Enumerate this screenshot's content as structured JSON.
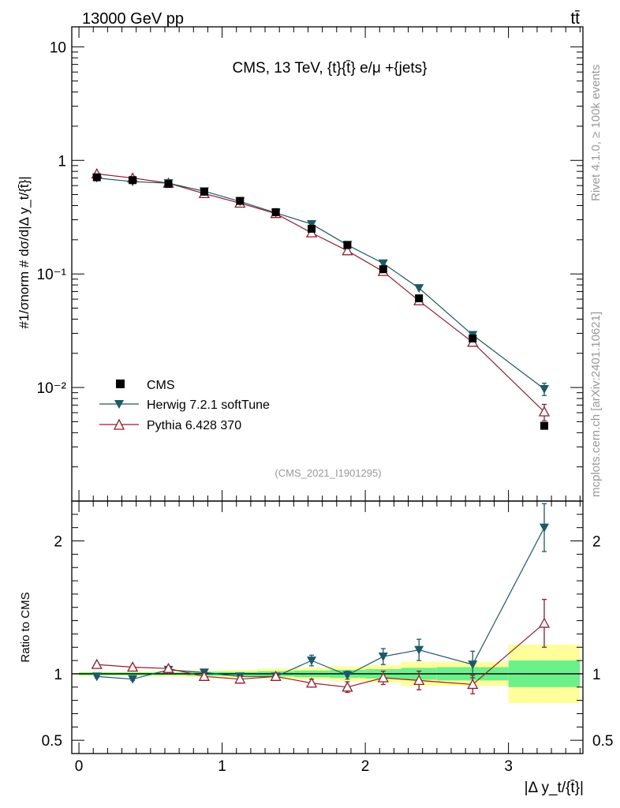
{
  "header": {
    "energy_label": "13000 GeV pp",
    "process_label": "tt̄"
  },
  "side_labels": {
    "rivet": "Rivet 4.1.0, ≥ 100k events",
    "mcplots": "mcplots.cern.ch [arXiv:2401.10621]"
  },
  "chart_data": [
    {
      "type": "line",
      "panel": "main",
      "title": "CMS, 13 TeV, {t}{t̄} e/μ +{jets}",
      "analysis_id": "(CMS_2021_I1901295)",
      "ylabel": "#1/σnorm # dσ/d|Δ y_t/{t̄}|",
      "yscale": "log",
      "ylim": [
        0.001,
        15
      ],
      "xlim": [
        -0.05,
        3.52
      ],
      "x_ticks": [
        0,
        1,
        2,
        3
      ],
      "y_ticks": [
        {
          "value": 0.01,
          "label": "10⁻²"
        },
        {
          "value": 0.1,
          "label": "10⁻¹"
        },
        {
          "value": 1,
          "label": "1"
        },
        {
          "value": 10,
          "label": "10"
        }
      ],
      "bin_edges": [
        0,
        0.25,
        0.5,
        0.75,
        1.0,
        1.25,
        1.5,
        1.75,
        2.0,
        2.25,
        2.5,
        3.0,
        3.5
      ],
      "x": [
        0.125,
        0.375,
        0.625,
        0.875,
        1.125,
        1.375,
        1.625,
        1.875,
        2.125,
        2.375,
        2.75,
        3.25
      ],
      "legend_position": "lower-left",
      "series": [
        {
          "name": "CMS",
          "marker": "square",
          "color": "#000000",
          "values": [
            0.71,
            0.67,
            0.62,
            0.53,
            0.44,
            0.35,
            0.25,
            0.18,
            0.11,
            0.061,
            0.027,
            0.0046
          ]
        },
        {
          "name": "Herwig 7.2.1 softTune",
          "marker": "triangle-down",
          "color": "#1a5a6b",
          "values": [
            0.7,
            0.65,
            0.63,
            0.535,
            0.435,
            0.345,
            0.275,
            0.18,
            0.124,
            0.075,
            0.029,
            0.0097
          ],
          "errors": [
            0,
            0,
            0,
            0,
            0,
            0,
            0,
            0,
            0,
            0,
            0.002,
            0.0012
          ]
        },
        {
          "name": "Pythia 6.428 370",
          "marker": "triangle-up-open",
          "color": "#9a1a2a",
          "values": [
            0.76,
            0.7,
            0.63,
            0.51,
            0.42,
            0.34,
            0.23,
            0.16,
            0.105,
            0.058,
            0.025,
            0.0061
          ],
          "errors": [
            0,
            0,
            0,
            0,
            0,
            0,
            0,
            0,
            0,
            0,
            0.0015,
            0.001
          ]
        }
      ]
    },
    {
      "type": "line",
      "panel": "ratio",
      "ylabel": "Ratio to CMS",
      "xlabel": "|Δ y_t/{t̄}|",
      "ylim": [
        0.4,
        2.3
      ],
      "xlim": [
        -0.05,
        3.52
      ],
      "x_ticks": [
        0,
        1,
        2,
        3
      ],
      "y_ticks": [
        {
          "value": 0.5,
          "label": "0.5"
        },
        {
          "value": 1,
          "label": "1"
        },
        {
          "value": 2,
          "label": "2"
        }
      ],
      "bin_edges": [
        0,
        0.25,
        0.5,
        0.75,
        1.0,
        1.25,
        1.5,
        1.75,
        2.0,
        2.25,
        2.5,
        3.0,
        3.5
      ],
      "x": [
        0.125,
        0.375,
        0.625,
        0.875,
        1.125,
        1.375,
        1.625,
        1.875,
        2.125,
        2.375,
        2.75,
        3.25
      ],
      "band_stat": [
        0.01,
        0.01,
        0.01,
        0.015,
        0.015,
        0.02,
        0.025,
        0.03,
        0.035,
        0.045,
        0.05,
        0.1
      ],
      "band_total": [
        0.015,
        0.015,
        0.02,
        0.025,
        0.03,
        0.04,
        0.045,
        0.055,
        0.065,
        0.09,
        0.09,
        0.22
      ],
      "series": [
        {
          "name": "Herwig 7.2.1 softTune",
          "marker": "triangle-down",
          "color": "#1a5a6b",
          "values": [
            0.98,
            0.96,
            1.03,
            1.01,
            0.98,
            0.98,
            1.1,
            0.99,
            1.13,
            1.18,
            1.07,
            2.1
          ],
          "errors": [
            0.01,
            0.01,
            0.01,
            0.01,
            0.01,
            0.01,
            0.04,
            0.03,
            0.06,
            0.08,
            0.1,
            0.18
          ]
        },
        {
          "name": "Pythia 6.428 370",
          "marker": "triangle-up-open",
          "color": "#9a1a2a",
          "values": [
            1.07,
            1.05,
            1.04,
            0.98,
            0.96,
            0.98,
            0.93,
            0.9,
            0.97,
            0.95,
            0.92,
            1.38
          ],
          "errors": [
            0.01,
            0.01,
            0.01,
            0.01,
            0.01,
            0.02,
            0.03,
            0.04,
            0.05,
            0.07,
            0.07,
            0.18
          ]
        }
      ]
    }
  ],
  "colors": {
    "band_stat": "#6cf08a",
    "band_total": "#fefe9a"
  }
}
